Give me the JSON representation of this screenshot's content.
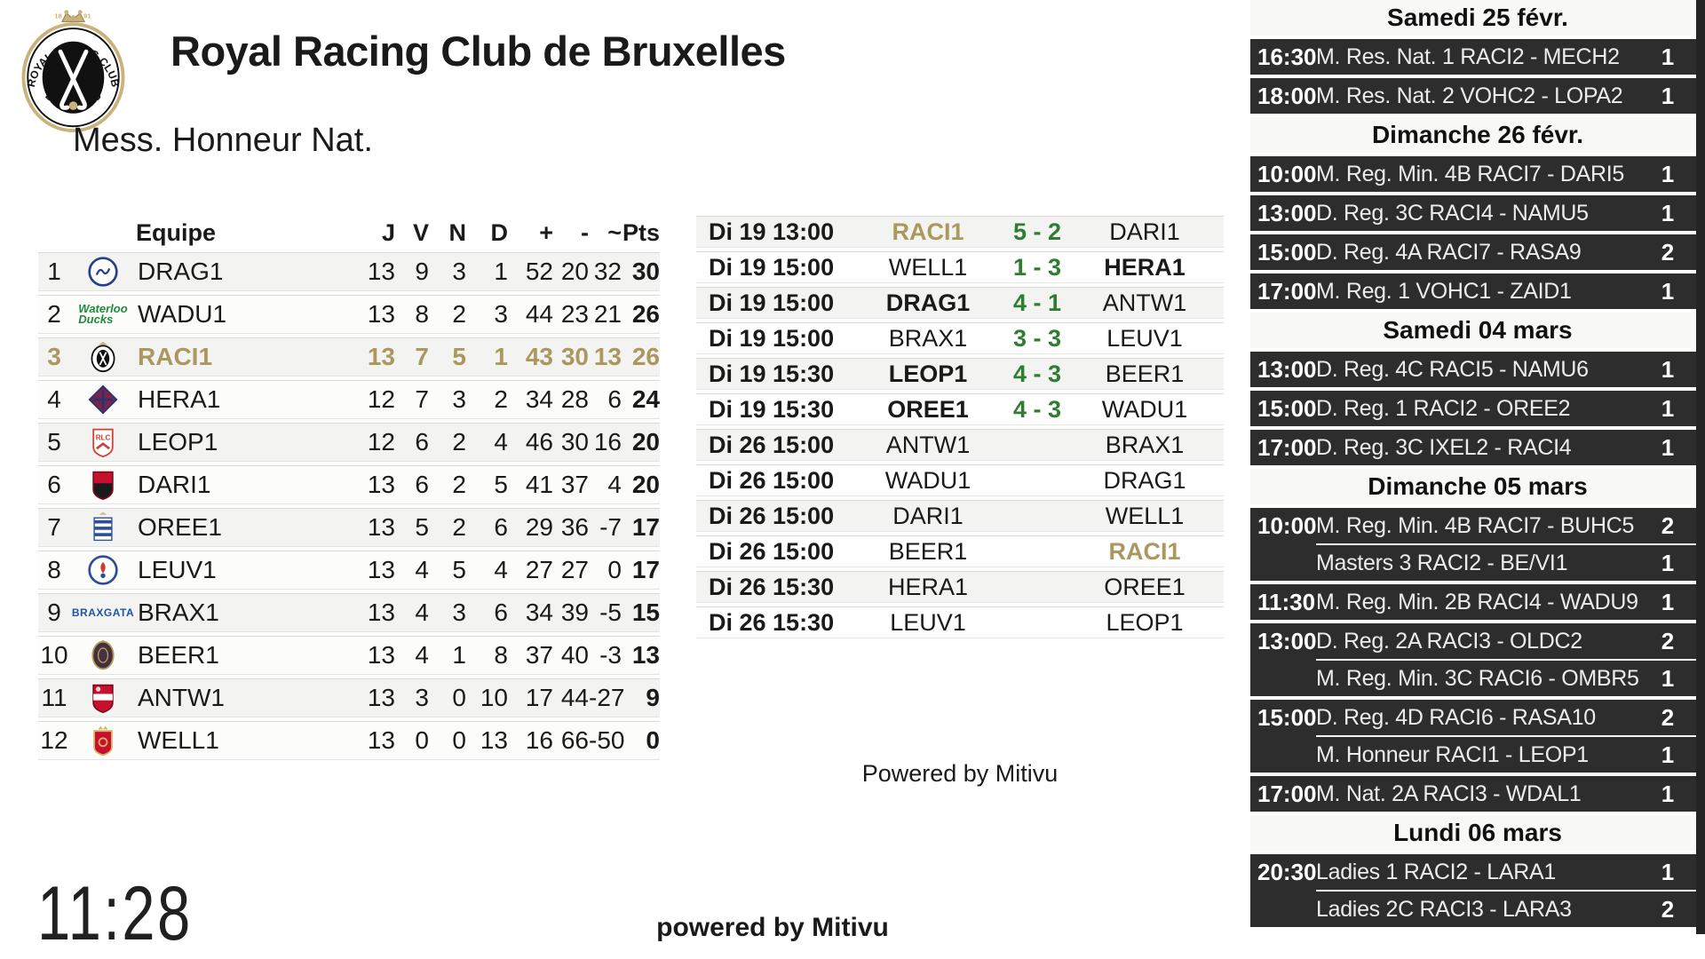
{
  "header": {
    "title": "Royal Racing Club de Bruxelles",
    "logo_text_top": "ROYAL RACING CLUB",
    "logo_text_bottom": "BRUXELLES",
    "logo_year_left": "18",
    "logo_year_right": "91"
  },
  "clock": "11:28",
  "colors": {
    "gold": "#ab985e",
    "score_green": "#2e7d32",
    "sidebar_row_bg": "#2d2d2d",
    "sidebar_header_bg": "#f8f8f7",
    "table_alt_row": "#f3f3f1"
  },
  "standings": {
    "title": "Mess. Honneur Nat.",
    "columns": [
      "Equipe",
      "J",
      "V",
      "N",
      "D",
      "+",
      "-",
      "~",
      "Pts"
    ],
    "rows": [
      {
        "pos": "1",
        "team": "DRAG1",
        "j": "13",
        "v": "9",
        "n": "3",
        "d": "1",
        "gf": "52",
        "ga": "20",
        "gd": "32",
        "pts": "30",
        "highlight": false,
        "logo": {
          "icon": "drag-badge-icon",
          "type": "circle",
          "c1": "#27408b",
          "c2": "#ffffff"
        }
      },
      {
        "pos": "2",
        "team": "WADU1",
        "j": "13",
        "v": "8",
        "n": "2",
        "d": "3",
        "gf": "44",
        "ga": "23",
        "gd": "21",
        "pts": "26",
        "highlight": false,
        "logo": {
          "icon": "waterloo-ducks-logo-icon",
          "type": "wordmark2",
          "c1": "#1f8a3b",
          "t1": "Waterloo",
          "t2": "Ducks"
        }
      },
      {
        "pos": "3",
        "team": "RACI1",
        "j": "13",
        "v": "7",
        "n": "5",
        "d": "1",
        "gf": "43",
        "ga": "30",
        "gd": "13",
        "pts": "26",
        "highlight": true,
        "logo": {
          "icon": "racing-badge-icon",
          "type": "racing",
          "c1": "#111111",
          "c2": "#c9b37a"
        }
      },
      {
        "pos": "4",
        "team": "HERA1",
        "j": "12",
        "v": "7",
        "n": "3",
        "d": "2",
        "gf": "34",
        "ga": "28",
        "gd": "6",
        "pts": "24",
        "highlight": false,
        "logo": {
          "icon": "herakles-badge-icon",
          "type": "diamond",
          "c1": "#7d2248",
          "c2": "#27356f"
        }
      },
      {
        "pos": "5",
        "team": "LEOP1",
        "j": "12",
        "v": "6",
        "n": "2",
        "d": "4",
        "gf": "46",
        "ga": "30",
        "gd": "16",
        "pts": "20",
        "highlight": false,
        "logo": {
          "icon": "leopold-shield-icon",
          "type": "shield",
          "c1": "#ffffff",
          "c2": "#cf3f34",
          "txt": "RLC"
        }
      },
      {
        "pos": "6",
        "team": "DARI1",
        "j": "13",
        "v": "6",
        "n": "2",
        "d": "5",
        "gf": "41",
        "ga": "37",
        "gd": "4",
        "pts": "20",
        "highlight": false,
        "logo": {
          "icon": "daring-shield-icon",
          "type": "shield-split",
          "c1": "#c8102e",
          "c2": "#1a1a1a"
        }
      },
      {
        "pos": "7",
        "team": "OREE1",
        "j": "13",
        "v": "5",
        "n": "2",
        "d": "6",
        "gf": "29",
        "ga": "36",
        "gd": "-7",
        "pts": "17",
        "highlight": false,
        "logo": {
          "icon": "oree-stripes-icon",
          "type": "stripes",
          "c1": "#2b4d9b",
          "c2": "#c9b37a"
        }
      },
      {
        "pos": "8",
        "team": "LEUV1",
        "j": "13",
        "v": "4",
        "n": "5",
        "d": "4",
        "gf": "27",
        "ga": "27",
        "gd": "0",
        "pts": "17",
        "highlight": false,
        "logo": {
          "icon": "leuven-circle-icon",
          "type": "circle2",
          "c1": "#2b4d9b",
          "c2": "#d03a2b"
        }
      },
      {
        "pos": "9",
        "team": "BRAX1",
        "j": "13",
        "v": "4",
        "n": "3",
        "d": "6",
        "gf": "34",
        "ga": "39",
        "gd": "-5",
        "pts": "15",
        "highlight": false,
        "logo": {
          "icon": "braxgata-wordmark-icon",
          "type": "wordmark1",
          "c1": "#1f55a5",
          "t1": "BRAXGATA"
        }
      },
      {
        "pos": "10",
        "team": "BEER1",
        "j": "13",
        "v": "4",
        "n": "1",
        "d": "8",
        "gf": "37",
        "ga": "40",
        "gd": "-3",
        "pts": "13",
        "highlight": false,
        "logo": {
          "icon": "beerschot-oval-icon",
          "type": "oval",
          "c1": "#43313d",
          "c2": "#b89b5a"
        }
      },
      {
        "pos": "11",
        "team": "ANTW1",
        "j": "13",
        "v": "3",
        "n": "0",
        "d": "10",
        "gf": "17",
        "ga": "44",
        "gd": "-27",
        "pts": "9",
        "highlight": false,
        "logo": {
          "icon": "antwerp-shield-icon",
          "type": "shield-band",
          "c1": "#c8102e",
          "c2": "#ffffff"
        }
      },
      {
        "pos": "12",
        "team": "WELL1",
        "j": "13",
        "v": "0",
        "n": "0",
        "d": "13",
        "gf": "16",
        "ga": "66",
        "gd": "-50",
        "pts": "0",
        "highlight": false,
        "logo": {
          "icon": "wellington-shield-icon",
          "type": "shield-crown",
          "c1": "#c8102e",
          "c2": "#d8b25c"
        }
      }
    ]
  },
  "results": {
    "powered_by": "Powered by Mitivu",
    "matches": [
      {
        "datetime": "Di 19 13:00",
        "home": "RACI1",
        "home_class": "gold",
        "score": "5 - 2",
        "away": "DARI1",
        "away_class": ""
      },
      {
        "datetime": "Di 19 15:00",
        "home": "WELL1",
        "home_class": "",
        "score": "1 - 3",
        "away": "HERA1",
        "away_class": "bold"
      },
      {
        "datetime": "Di 19 15:00",
        "home": "DRAG1",
        "home_class": "bold",
        "score": "4 - 1",
        "away": "ANTW1",
        "away_class": ""
      },
      {
        "datetime": "Di 19 15:00",
        "home": "BRAX1",
        "home_class": "",
        "score": "3 - 3",
        "away": "LEUV1",
        "away_class": ""
      },
      {
        "datetime": "Di 19 15:30",
        "home": "LEOP1",
        "home_class": "bold",
        "score": "4 - 3",
        "away": "BEER1",
        "away_class": ""
      },
      {
        "datetime": "Di 19 15:30",
        "home": "OREE1",
        "home_class": "bold",
        "score": "4 - 3",
        "away": "WADU1",
        "away_class": ""
      },
      {
        "datetime": "Di 26 15:00",
        "home": "ANTW1",
        "home_class": "",
        "score": "",
        "away": "BRAX1",
        "away_class": ""
      },
      {
        "datetime": "Di 26 15:00",
        "home": "WADU1",
        "home_class": "",
        "score": "",
        "away": "DRAG1",
        "away_class": ""
      },
      {
        "datetime": "Di 26 15:00",
        "home": "DARI1",
        "home_class": "",
        "score": "",
        "away": "WELL1",
        "away_class": ""
      },
      {
        "datetime": "Di 26 15:00",
        "home": "BEER1",
        "home_class": "",
        "score": "",
        "away": "RACI1",
        "away_class": "gold"
      },
      {
        "datetime": "Di 26 15:30",
        "home": "HERA1",
        "home_class": "",
        "score": "",
        "away": "OREE1",
        "away_class": ""
      },
      {
        "datetime": "Di 26 15:30",
        "home": "LEUV1",
        "home_class": "",
        "score": "",
        "away": "LEOP1",
        "away_class": ""
      }
    ]
  },
  "schedule": {
    "sections": [
      {
        "date": "Samedi 25 févr.",
        "groups": [
          {
            "time": "16:30",
            "matches": [
              {
                "label": "M. Res. Nat. 1 RACI2 - MECH2",
                "field": "1"
              }
            ]
          },
          {
            "time": "18:00",
            "matches": [
              {
                "label": "M. Res. Nat. 2 VOHC2 - LOPA2",
                "field": "1"
              }
            ]
          }
        ]
      },
      {
        "date": "Dimanche 26 févr.",
        "groups": [
          {
            "time": "10:00",
            "matches": [
              {
                "label": "M. Reg. Min. 4B RACI7 - DARI5",
                "field": "1"
              }
            ]
          },
          {
            "time": "13:00",
            "matches": [
              {
                "label": "D. Reg. 3C RACI4 - NAMU5",
                "field": "1"
              }
            ]
          },
          {
            "time": "15:00",
            "matches": [
              {
                "label": "D. Reg. 4A RACI7 - RASA9",
                "field": "2"
              }
            ]
          },
          {
            "time": "17:00",
            "matches": [
              {
                "label": "M. Reg. 1 VOHC1 - ZAID1",
                "field": "1"
              }
            ]
          }
        ]
      },
      {
        "date": "Samedi 04 mars",
        "groups": [
          {
            "time": "13:00",
            "matches": [
              {
                "label": "D. Reg. 4C RACI5 - NAMU6",
                "field": "1"
              }
            ]
          },
          {
            "time": "15:00",
            "matches": [
              {
                "label": "D. Reg. 1 RACI2 - OREE2",
                "field": "1"
              }
            ]
          },
          {
            "time": "17:00",
            "matches": [
              {
                "label": "D. Reg. 3C IXEL2 - RACI4",
                "field": "1"
              }
            ]
          }
        ]
      },
      {
        "date": "Dimanche 05 mars",
        "groups": [
          {
            "time": "10:00",
            "matches": [
              {
                "label": "M. Reg. Min. 4B RACI7 - BUHC5",
                "field": "2"
              },
              {
                "label": "Masters 3 RACI2 - BE/VI1",
                "field": "1"
              }
            ]
          },
          {
            "time": "11:30",
            "matches": [
              {
                "label": "M. Reg. Min. 2B RACI4 - WADU9",
                "field": "1"
              }
            ]
          },
          {
            "time": "13:00",
            "matches": [
              {
                "label": "D. Reg. 2A RACI3 - OLDC2",
                "field": "2"
              },
              {
                "label": "M. Reg. Min. 3C RACI6 - OMBR5",
                "field": "1"
              }
            ]
          },
          {
            "time": "15:00",
            "matches": [
              {
                "label": "D. Reg. 4D RACI6 - RASA10",
                "field": "2"
              },
              {
                "label": "M. Honneur RACI1 - LEOP1",
                "field": "1"
              }
            ]
          },
          {
            "time": "17:00",
            "matches": [
              {
                "label": "M. Nat. 2A RACI3 - WDAL1",
                "field": "1"
              }
            ]
          }
        ]
      },
      {
        "date": "Lundi 06 mars",
        "groups": [
          {
            "time": "20:30",
            "matches": [
              {
                "label": "Ladies 1 RACI2 - LARA1",
                "field": "1"
              },
              {
                "label": "Ladies 2C RACI3 - LARA3",
                "field": "2"
              }
            ]
          }
        ]
      }
    ]
  },
  "footer": {
    "powered_by": "powered by Mitivu"
  }
}
